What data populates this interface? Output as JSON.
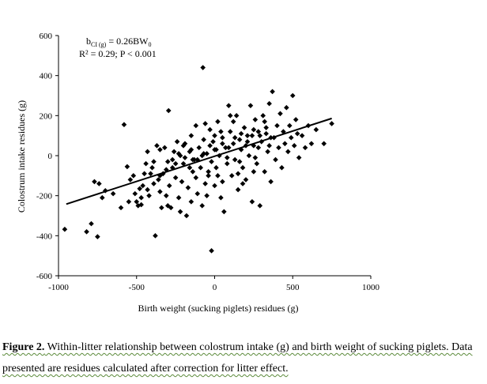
{
  "chart_data": {
    "type": "scatter",
    "xlabel": "Birth weight (sucking piglets) residues (g)",
    "ylabel": "Colostrum intake residues (g)",
    "xlim": [
      -1000,
      1000
    ],
    "ylim": [
      -600,
      600
    ],
    "x_ticks": [
      -1000,
      -500,
      0,
      500,
      1000
    ],
    "y_ticks": [
      600,
      400,
      200,
      0,
      -200,
      -400,
      -600
    ],
    "x_tick_labels": [
      "-1000",
      "-500",
      "0",
      "500",
      "1000"
    ],
    "y_tick_labels": [
      "600",
      "400",
      "200",
      "0",
      "-200",
      "-400",
      "-600"
    ],
    "annotation": {
      "line1_main": "b",
      "line1_sub": "CI (g)",
      "line1_rest": " = 0.26BW",
      "line1_sub2": "0",
      "line2": "R² = 0.29; P < 0.001"
    },
    "trend_line": {
      "x": [
        -950,
        750
      ],
      "y": [
        -242,
        186
      ]
    },
    "series": [
      {
        "marker": "diamond",
        "color": "#000000",
        "points": [
          [
            -960,
            -368
          ],
          [
            -820,
            -380
          ],
          [
            -790,
            -340
          ],
          [
            -770,
            -130
          ],
          [
            -750,
            -405
          ],
          [
            -740,
            -140
          ],
          [
            -720,
            -210
          ],
          [
            -700,
            -175
          ],
          [
            -650,
            -190
          ],
          [
            -600,
            -260
          ],
          [
            -580,
            155
          ],
          [
            -560,
            -55
          ],
          [
            -550,
            -230
          ],
          [
            -540,
            -120
          ],
          [
            -520,
            -100
          ],
          [
            -510,
            -190
          ],
          [
            -500,
            -230
          ],
          [
            -490,
            -250
          ],
          [
            -480,
            -165
          ],
          [
            -470,
            -245
          ],
          [
            -460,
            -150
          ],
          [
            -450,
            -90
          ],
          [
            -440,
            -40
          ],
          [
            -430,
            20
          ],
          [
            -420,
            -200
          ],
          [
            -410,
            -90
          ],
          [
            -400,
            -60
          ],
          [
            -390,
            -30
          ],
          [
            -380,
            -400
          ],
          [
            -370,
            50
          ],
          [
            -360,
            -120
          ],
          [
            -350,
            -180
          ],
          [
            -340,
            -260
          ],
          [
            -330,
            -90
          ],
          [
            -320,
            40
          ],
          [
            -310,
            -200
          ],
          [
            -300,
            -30
          ],
          [
            -295,
            225
          ],
          [
            -290,
            -150
          ],
          [
            -280,
            -260
          ],
          [
            -270,
            -60
          ],
          [
            -260,
            20
          ],
          [
            -250,
            -110
          ],
          [
            -240,
            70
          ],
          [
            -230,
            -210
          ],
          [
            -220,
            0
          ],
          [
            -210,
            -130
          ],
          [
            -200,
            -40
          ],
          [
            -190,
            60
          ],
          [
            -180,
            -300
          ],
          [
            -170,
            -160
          ],
          [
            -160,
            20
          ],
          [
            -150,
            100
          ],
          [
            -140,
            -80
          ],
          [
            -130,
            -20
          ],
          [
            -120,
            150
          ],
          [
            -110,
            -190
          ],
          [
            -100,
            40
          ],
          [
            -90,
            -60
          ],
          [
            -80,
            -250
          ],
          [
            -75,
            440
          ],
          [
            -70,
            80
          ],
          [
            -60,
            -140
          ],
          [
            -50,
            10
          ],
          [
            -40,
            -100
          ],
          [
            -30,
            130
          ],
          [
            -20,
            -30
          ],
          [
            -10,
            70
          ],
          [
            0,
            -150
          ],
          [
            0,
            30
          ],
          [
            10,
            -60
          ],
          [
            20,
            170
          ],
          [
            30,
            0
          ],
          [
            40,
            -210
          ],
          [
            50,
            90
          ],
          [
            60,
            -280
          ],
          [
            70,
            40
          ],
          [
            80,
            -40
          ],
          [
            90,
            250
          ],
          [
            100,
            120
          ],
          [
            110,
            -100
          ],
          [
            120,
            60
          ],
          [
            130,
            -20
          ],
          [
            140,
            200
          ],
          [
            150,
            -170
          ],
          [
            160,
            80
          ],
          [
            170,
            30
          ],
          [
            180,
            -60
          ],
          [
            190,
            140
          ],
          [
            200,
            -120
          ],
          [
            210,
            100
          ],
          [
            220,
            0
          ],
          [
            230,
            250
          ],
          [
            240,
            -230
          ],
          [
            250,
            50
          ],
          [
            260,
            180
          ],
          [
            270,
            -40
          ],
          [
            280,
            120
          ],
          [
            290,
            -250
          ],
          [
            300,
            70
          ],
          [
            310,
            200
          ],
          [
            320,
            -80
          ],
          [
            330,
            140
          ],
          [
            340,
            20
          ],
          [
            350,
            260
          ],
          [
            360,
            -130
          ],
          [
            370,
            320
          ],
          [
            380,
            90
          ],
          [
            390,
            -20
          ],
          [
            400,
            150
          ],
          [
            410,
            40
          ],
          [
            420,
            210
          ],
          [
            430,
            -60
          ],
          [
            440,
            120
          ],
          [
            450,
            60
          ],
          [
            460,
            240
          ],
          [
            470,
            20
          ],
          [
            480,
            150
          ],
          [
            490,
            90
          ],
          [
            500,
            300
          ],
          [
            510,
            50
          ],
          [
            520,
            180
          ],
          [
            530,
            110
          ],
          [
            540,
            -10
          ],
          [
            560,
            100
          ],
          [
            580,
            40
          ],
          [
            600,
            150
          ],
          [
            620,
            60
          ],
          [
            650,
            130
          ],
          [
            700,
            60
          ],
          [
            750,
            160
          ],
          [
            -470,
            -210
          ],
          [
            -430,
            -170
          ],
          [
            -390,
            -140
          ],
          [
            -350,
            -100
          ],
          [
            -310,
            -70
          ],
          [
            -270,
            -20
          ],
          [
            -230,
            10
          ],
          [
            -190,
            -10
          ],
          [
            -150,
            30
          ],
          [
            -110,
            -20
          ],
          [
            -70,
            10
          ],
          [
            -30,
            50
          ],
          [
            10,
            30
          ],
          [
            50,
            60
          ],
          [
            90,
            40
          ],
          [
            130,
            90
          ],
          [
            170,
            110
          ],
          [
            210,
            70
          ],
          [
            250,
            130
          ],
          [
            290,
            100
          ],
          [
            330,
            110
          ],
          [
            -200,
            50
          ],
          [
            -160,
            -60
          ],
          [
            -120,
            -110
          ],
          [
            -80,
            0
          ],
          [
            -40,
            -80
          ],
          [
            0,
            100
          ],
          [
            40,
            120
          ],
          [
            80,
            -10
          ],
          [
            120,
            170
          ],
          [
            160,
            -30
          ],
          [
            200,
            50
          ],
          [
            240,
            100
          ],
          [
            280,
            40
          ],
          [
            320,
            170
          ],
          [
            360,
            90
          ],
          [
            -350,
            30
          ],
          [
            -250,
            -40
          ],
          [
            -150,
            -230
          ],
          [
            -50,
            -200
          ],
          [
            50,
            -130
          ],
          [
            150,
            -90
          ],
          [
            250,
            -80
          ],
          [
            350,
            50
          ],
          [
            -20,
            -475
          ],
          [
            -300,
            -250
          ],
          [
            -220,
            -280
          ],
          [
            -140,
            -20
          ],
          [
            -60,
            160
          ],
          [
            20,
            -100
          ],
          [
            100,
            200
          ],
          [
            180,
            -140
          ],
          [
            260,
            -10
          ]
        ]
      }
    ]
  },
  "caption": {
    "label": "Figure 2.",
    "text": " Within-litter relationship between colostrum intake (g) and birth weight of sucking piglets. Data presented are residues calculated after correction for litter effect."
  }
}
